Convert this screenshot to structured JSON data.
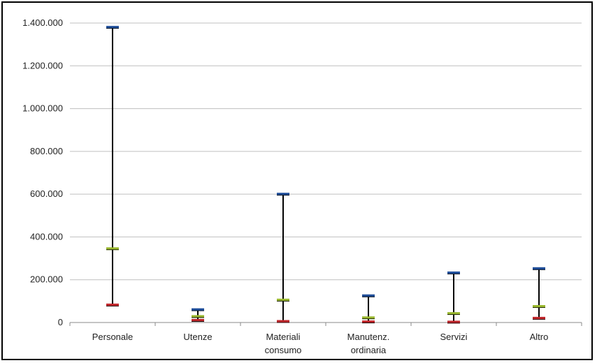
{
  "chart_data": {
    "type": "error-bar",
    "title": "",
    "xlabel": "",
    "ylabel": "",
    "ylim": [
      0,
      1400000
    ],
    "grid": true,
    "legend": "none",
    "y_ticks": [
      {
        "value": 0,
        "label": "0"
      },
      {
        "value": 200000,
        "label": "200.000"
      },
      {
        "value": 400000,
        "label": "400.000"
      },
      {
        "value": 600000,
        "label": "600.000"
      },
      {
        "value": 800000,
        "label": "800.000"
      },
      {
        "value": 1000000,
        "label": "1.000.000"
      },
      {
        "value": 1200000,
        "label": "1.200.000"
      },
      {
        "value": 1400000,
        "label": "1.400.000"
      }
    ],
    "categories": [
      {
        "lines": [
          "Personale"
        ]
      },
      {
        "lines": [
          "Utenze"
        ]
      },
      {
        "lines": [
          "Materiali",
          "consumo"
        ]
      },
      {
        "lines": [
          "Manutenz.",
          "ordinaria"
        ]
      },
      {
        "lines": [
          "Servizi"
        ]
      },
      {
        "lines": [
          "Altro"
        ]
      }
    ],
    "series": [
      {
        "color": "#1f4e9a",
        "values": [
          1380000,
          60000,
          600000,
          125000,
          232000,
          252000
        ]
      },
      {
        "color": "#9ab82e",
        "values": [
          345000,
          28000,
          105000,
          22000,
          42000,
          75000
        ]
      },
      {
        "color": "#c0262b",
        "values": [
          82000,
          10000,
          5000,
          3000,
          2000,
          20000
        ]
      }
    ],
    "colors": {
      "grid": "#bfbfbf",
      "axis": "#888888",
      "whisker": "#000000"
    }
  }
}
